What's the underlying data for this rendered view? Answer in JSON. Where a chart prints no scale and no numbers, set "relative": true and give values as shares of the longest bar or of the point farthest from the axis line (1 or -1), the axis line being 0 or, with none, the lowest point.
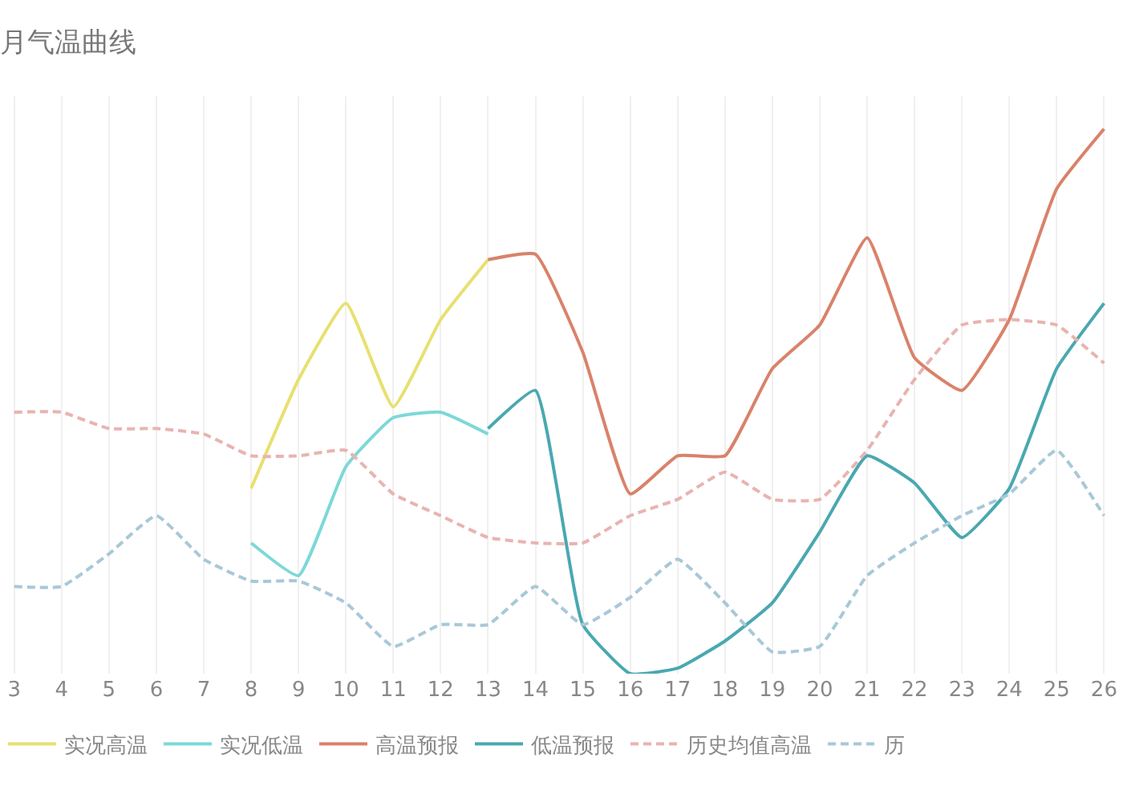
{
  "chart_data": {
    "type": "line",
    "title": "月气温曲线",
    "relative": true,
    "grid": "x",
    "legend": "bottom",
    "marker": "none",
    "categories": [
      "3",
      "4",
      "5",
      "6",
      "7",
      "8",
      "9",
      "10",
      "11",
      "12",
      "13",
      "14",
      "15",
      "16",
      "17",
      "18",
      "19",
      "20",
      "21",
      "22",
      "23",
      "24",
      "25",
      "26"
    ],
    "series": [
      {
        "name": "实况高温",
        "color": "#e8e070",
        "line_style": "solid",
        "values": [
          null,
          null,
          null,
          null,
          null,
          0.34,
          0.54,
          0.68,
          0.49,
          0.65,
          0.76,
          null,
          null,
          null,
          null,
          null,
          null,
          null,
          null,
          null,
          null,
          null,
          null,
          null
        ]
      },
      {
        "name": "实况低温",
        "color": "#7dd8d8",
        "line_style": "solid",
        "values": [
          null,
          null,
          null,
          null,
          null,
          0.24,
          0.18,
          0.38,
          0.47,
          0.48,
          0.44,
          null,
          null,
          null,
          null,
          null,
          null,
          null,
          null,
          null,
          null,
          null,
          null,
          null
        ]
      },
      {
        "name": "高温预报",
        "color": "#d9826a",
        "line_style": "solid",
        "values": [
          null,
          null,
          null,
          null,
          null,
          null,
          null,
          null,
          null,
          null,
          0.76,
          0.77,
          0.59,
          0.33,
          0.4,
          0.4,
          0.56,
          0.64,
          0.8,
          0.58,
          0.52,
          0.65,
          0.89,
          1
        ]
      },
      {
        "name": "低温预报",
        "color": "#4aa8b0",
        "line_style": "solid",
        "values": [
          null,
          null,
          null,
          null,
          null,
          null,
          null,
          null,
          null,
          null,
          0.45,
          0.52,
          0.09,
          0,
          0.01,
          0.06,
          0.13,
          0.26,
          0.4,
          0.35,
          0.25,
          0.34,
          0.56,
          0.68
        ]
      },
      {
        "name": "历史均值高温",
        "color": "#e8b4b0",
        "line_style": "dashed",
        "values": [
          0.48,
          0.48,
          0.45,
          0.45,
          0.44,
          0.4,
          0.4,
          0.41,
          0.33,
          0.29,
          0.25,
          0.24,
          0.24,
          0.29,
          0.32,
          0.37,
          0.32,
          0.32,
          0.41,
          0.54,
          0.64,
          0.65,
          0.64,
          0.57
        ]
      },
      {
        "name": "历",
        "color": "#a8c8d8",
        "line_style": "dashed",
        "values": [
          0.16,
          0.16,
          0.22,
          0.29,
          0.21,
          0.17,
          0.17,
          0.13,
          0.05,
          0.09,
          0.09,
          0.16,
          0.09,
          0.14,
          0.21,
          0.13,
          0.04,
          0.05,
          0.18,
          0.24,
          0.29,
          0.33,
          0.41,
          0.29
        ]
      }
    ]
  }
}
